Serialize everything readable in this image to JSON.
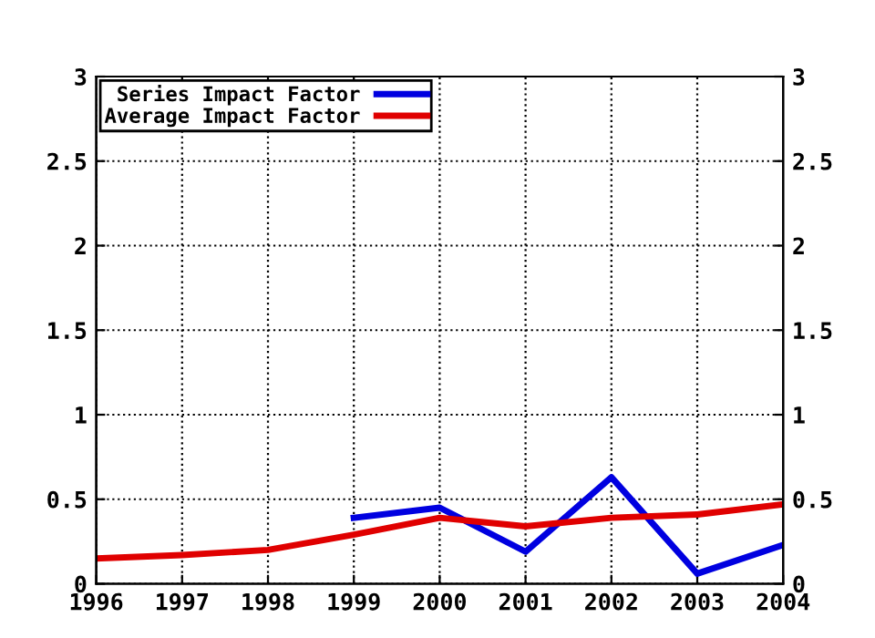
{
  "chart_data": {
    "type": "line",
    "x": [
      1996,
      1997,
      1998,
      1999,
      2000,
      2001,
      2002,
      2003,
      2004
    ],
    "series": [
      {
        "name": "Series Impact Factor",
        "color": "#0000e0",
        "values": [
          null,
          null,
          null,
          0.39,
          0.45,
          0.19,
          0.63,
          0.06,
          0.23
        ]
      },
      {
        "name": "Average Impact Factor",
        "color": "#e00000",
        "values": [
          0.15,
          0.17,
          0.2,
          0.29,
          0.39,
          0.34,
          0.39,
          0.41,
          0.47
        ]
      }
    ],
    "xlim": [
      1996,
      2004
    ],
    "xticks": [
      1996,
      1997,
      1998,
      1999,
      2000,
      2001,
      2002,
      2003,
      2004
    ],
    "ylim": [
      0,
      3
    ],
    "yticks": [
      0,
      0.5,
      1,
      1.5,
      2,
      2.5,
      3
    ],
    "y2lim": [
      0,
      3
    ],
    "y2ticks": [
      0,
      0.5,
      1,
      1.5,
      2,
      2.5,
      3
    ],
    "grid": true,
    "legend": "top left",
    "line_style": "solid",
    "marker": "none"
  }
}
